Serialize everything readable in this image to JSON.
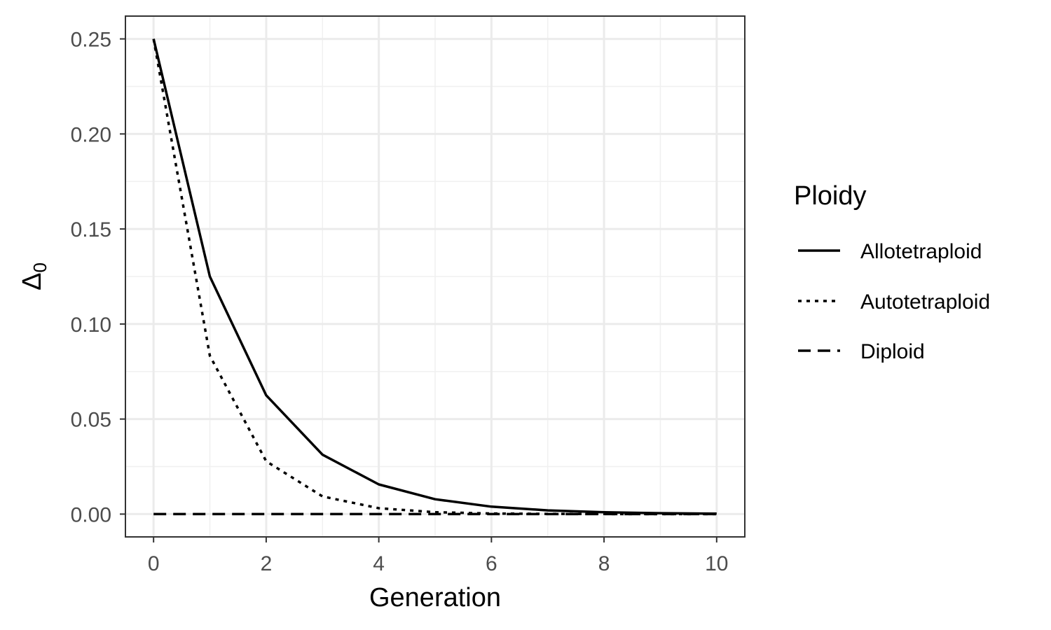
{
  "chart_data": {
    "type": "line",
    "xlabel": "Generation",
    "ylabel": {
      "main": "Δ",
      "sub": "0"
    },
    "xlim": [
      -0.5,
      10.5
    ],
    "ylim": [
      -0.012,
      0.262
    ],
    "x_ticks": [
      0,
      2,
      4,
      6,
      8,
      10
    ],
    "x_tick_labels": [
      "0",
      "2",
      "4",
      "6",
      "8",
      "10"
    ],
    "y_ticks": [
      0,
      0.05,
      0.1,
      0.15,
      0.2,
      0.25
    ],
    "y_tick_labels": [
      "0.00",
      "0.05",
      "0.10",
      "0.15",
      "0.20",
      "0.25"
    ],
    "x_minor_ticks": [
      1,
      3,
      5,
      7,
      9
    ],
    "y_minor_ticks": [
      0.025,
      0.075,
      0.125,
      0.175,
      0.225
    ],
    "grid": true,
    "legend": {
      "title": "Ploidy",
      "position": "right"
    },
    "x": [
      0,
      1,
      2,
      3,
      4,
      5,
      6,
      7,
      8,
      9,
      10
    ],
    "series": [
      {
        "name": "Allotetraploid",
        "linetype": "solid",
        "values": [
          0.25,
          0.125,
          0.0625,
          0.03125,
          0.015625,
          0.0078125,
          0.00390625,
          0.001953,
          0.000977,
          0.000488,
          0.000244
        ]
      },
      {
        "name": "Autotetraploid",
        "linetype": "dotted",
        "values": [
          0.25,
          0.0833,
          0.0278,
          0.0093,
          0.0031,
          0.001,
          0.0003,
          0.0001,
          4e-05,
          1e-05,
          0.0
        ]
      },
      {
        "name": "Diploid",
        "linetype": "dashed",
        "values": [
          0,
          0,
          0,
          0,
          0,
          0,
          0,
          0,
          0,
          0,
          0
        ]
      }
    ]
  }
}
